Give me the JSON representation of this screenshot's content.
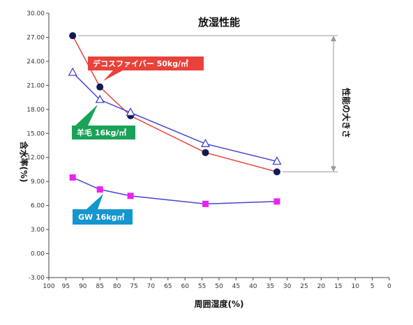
{
  "chart_data": {
    "type": "line",
    "title": "放湿性能",
    "xlabel": "周囲湿度(%)",
    "ylabel": "含水率(%)",
    "xlim": [
      100,
      0
    ],
    "ylim": [
      -3,
      30
    ],
    "x_ticks": [
      "100",
      "95",
      "90",
      "85",
      "80",
      "75",
      "70",
      "65",
      "60",
      "55",
      "50",
      "45",
      "40",
      "35",
      "30",
      "25",
      "20",
      "15",
      "10",
      "5",
      "0"
    ],
    "y_ticks": [
      "30.00",
      "27.00",
      "24.00",
      "21.00",
      "18.00",
      "15.00",
      "12.00",
      "9.00",
      "6.00",
      "3.00",
      "0.00",
      "-3.00"
    ],
    "grid": false,
    "series": [
      {
        "label": "デコスファイバー 50kg/㎥",
        "color": "#e8423a",
        "marker": "circle",
        "marker_color": "#121a55",
        "x": [
          93,
          85,
          76,
          54,
          33
        ],
        "y": [
          27.2,
          20.8,
          17.2,
          12.6,
          10.2
        ]
      },
      {
        "label": "羊毛 16kg/㎥",
        "color": "#4545cc",
        "marker": "triangle",
        "marker_color": "#4545cc",
        "x": [
          93,
          85,
          76,
          54,
          33
        ],
        "y": [
          22.6,
          19.2,
          17.6,
          13.7,
          11.5
        ]
      },
      {
        "label": "GW 16kg㎥",
        "color": "#4545cc",
        "marker": "square",
        "marker_color": "#ee22ee",
        "x": [
          93,
          85,
          76,
          54,
          33
        ],
        "y": [
          9.5,
          8.0,
          7.2,
          6.2,
          6.5
        ]
      }
    ],
    "annotations": {
      "range_label": "性能の大きさ"
    },
    "callout_colors": {
      "decos": "#e8423a",
      "wool": "#1aa258",
      "gw": "#1496cf"
    }
  }
}
